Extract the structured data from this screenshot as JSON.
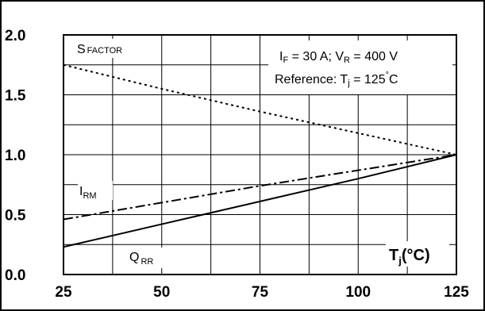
{
  "chart_data": {
    "type": "line",
    "title": "",
    "xlabel": "T",
    "xlabel_sub": "j",
    "xlabel_unit": "(°C)",
    "ylabel": "",
    "xlim": [
      25,
      125
    ],
    "ylim": [
      0,
      2
    ],
    "x_ticks": [
      25,
      50,
      75,
      100,
      125
    ],
    "x_tick_labels": [
      "25",
      "50",
      "75",
      "100",
      "125"
    ],
    "y_ticks": [
      0,
      0.5,
      1,
      1.5,
      2
    ],
    "y_tick_labels": [
      "0.0",
      "0.5",
      "1.0",
      "1.5",
      "2.0"
    ],
    "grid": true,
    "series": [
      {
        "name": "S",
        "sub": "FACTOR",
        "style": "dotted",
        "x": [
          25,
          50,
          75,
          100,
          125
        ],
        "y": [
          1.75,
          1.55,
          1.36,
          1.18,
          1.0
        ]
      },
      {
        "name": "I",
        "sub": "RM",
        "style": "dashdot",
        "x": [
          25,
          50,
          75,
          100,
          125
        ],
        "y": [
          0.46,
          0.6,
          0.74,
          0.87,
          1.0
        ]
      },
      {
        "name": "Q",
        "sub": "RR",
        "style": "solid",
        "x": [
          25,
          50,
          75,
          100,
          125
        ],
        "y": [
          0.23,
          0.42,
          0.61,
          0.8,
          1.0
        ]
      }
    ],
    "annotation": {
      "line1": {
        "a": "I",
        "a_sub": "F",
        "b": " = 30 A; V",
        "b_sub": "R",
        "c": " = 400 V"
      },
      "line2": {
        "a": "Reference: T",
        "a_sub": "j",
        "b": " = 125",
        "deg": "°",
        "c": "C"
      }
    }
  }
}
